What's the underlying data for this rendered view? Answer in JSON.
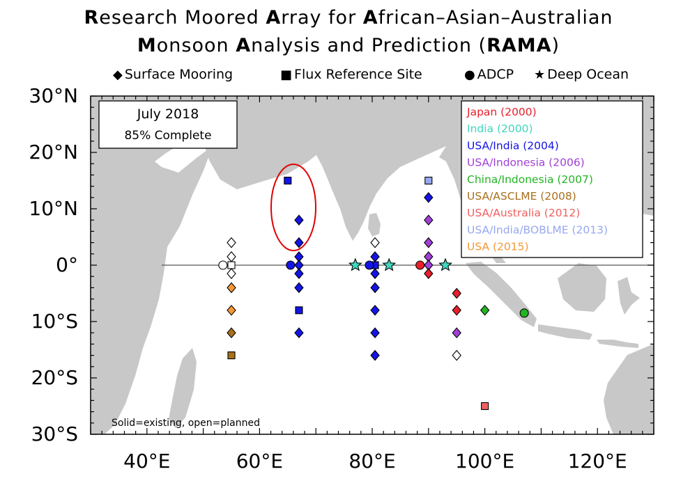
{
  "title": {
    "line1": [
      {
        "t": "R",
        "b": true
      },
      {
        "t": "esearch Moored ",
        "b": false
      },
      {
        "t": "A",
        "b": true
      },
      {
        "t": "rray for ",
        "b": false
      },
      {
        "t": "A",
        "b": true
      },
      {
        "t": "frican–Asian–Australian",
        "b": false
      }
    ],
    "line2": [
      {
        "t": "M",
        "b": true
      },
      {
        "t": "onsoon ",
        "b": false
      },
      {
        "t": "A",
        "b": true
      },
      {
        "t": "nalysis and Prediction (",
        "b": false
      },
      {
        "t": "RAMA",
        "b": true
      },
      {
        "t": ")",
        "b": false
      }
    ]
  },
  "symbol_key": [
    {
      "glyph": "◆",
      "label": "Surface Mooring"
    },
    {
      "glyph": "■",
      "label": "Flux Reference Site"
    },
    {
      "glyph": "●",
      "label": "ADCP"
    },
    {
      "glyph": "★",
      "label": "Deep Ocean"
    }
  ],
  "status_box": {
    "date": "July 2018",
    "complete": "85% Complete"
  },
  "footnote": "Solid=existing, open=planned",
  "lat_labels": [
    {
      "lat": 30,
      "text": "30°N"
    },
    {
      "lat": 20,
      "text": "20°N"
    },
    {
      "lat": 10,
      "text": "10°N"
    },
    {
      "lat": 0,
      "text": "0°"
    },
    {
      "lat": -10,
      "text": "10°S"
    },
    {
      "lat": -20,
      "text": "20°S"
    },
    {
      "lat": -30,
      "text": "30°S"
    }
  ],
  "lon_labels": [
    {
      "lon": 40,
      "text": "40°E"
    },
    {
      "lon": 60,
      "text": "60°E"
    },
    {
      "lon": 80,
      "text": "80°E"
    },
    {
      "lon": 100,
      "text": "100°E"
    },
    {
      "lon": 120,
      "text": "120°E"
    }
  ],
  "map_extent": {
    "lon": [
      30,
      130
    ],
    "lat": [
      -30,
      30
    ]
  },
  "colors": {
    "land": "#c8c8c8",
    "ocean": "#ffffff",
    "highlight": "#e00000"
  },
  "partners": [
    {
      "key": "japan",
      "label": "Japan (2000)",
      "color": "#e8202a"
    },
    {
      "key": "india",
      "label": "India (2000)",
      "color": "#3fd7be"
    },
    {
      "key": "usa_india",
      "label": "USA/India (2004)",
      "color": "#1414e6"
    },
    {
      "key": "usa_indonesia",
      "label": "USA/Indonesia (2006)",
      "color": "#a040d8"
    },
    {
      "key": "china_indonesia",
      "label": "China/Indonesia (2007)",
      "color": "#22b422"
    },
    {
      "key": "usa_asclme",
      "label": "USA/ASCLME (2008)",
      "color": "#a8701c"
    },
    {
      "key": "usa_australia",
      "label": "USA/Australia (2012)",
      "color": "#f06060"
    },
    {
      "key": "usa_india_bob",
      "label": "USA/India/BOBLME (2013)",
      "color": "#98a8f0"
    },
    {
      "key": "usa2015",
      "label": "USA (2015)",
      "color": "#f59838"
    }
  ],
  "moorings": [
    {
      "lon": 55,
      "lat": 4,
      "s": "d",
      "c": "open"
    },
    {
      "lon": 55,
      "lat": 1.5,
      "s": "d",
      "c": "open"
    },
    {
      "lon": 55,
      "lat": 0,
      "s": "s",
      "c": "open"
    },
    {
      "lon": 53.5,
      "lat": 0,
      "s": "o",
      "c": "open"
    },
    {
      "lon": 55,
      "lat": -1.5,
      "s": "d",
      "c": "open"
    },
    {
      "lon": 55,
      "lat": -4,
      "s": "d",
      "c": "usa2015"
    },
    {
      "lon": 55,
      "lat": -8,
      "s": "d",
      "c": "usa2015"
    },
    {
      "lon": 55,
      "lat": -12,
      "s": "d",
      "c": "usa_asclme"
    },
    {
      "lon": 55,
      "lat": -16,
      "s": "s",
      "c": "usa_asclme"
    },
    {
      "lon": 65,
      "lat": 15,
      "s": "s",
      "c": "usa_india"
    },
    {
      "lon": 67,
      "lat": 8,
      "s": "d",
      "c": "usa_india"
    },
    {
      "lon": 67,
      "lat": 4,
      "s": "d",
      "c": "usa_india"
    },
    {
      "lon": 67,
      "lat": 1.5,
      "s": "d",
      "c": "usa_india"
    },
    {
      "lon": 67,
      "lat": 0,
      "s": "d",
      "c": "usa_india"
    },
    {
      "lon": 65.5,
      "lat": 0,
      "s": "o",
      "c": "usa_india"
    },
    {
      "lon": 67,
      "lat": -1.5,
      "s": "d",
      "c": "usa_india"
    },
    {
      "lon": 67,
      "lat": -4,
      "s": "d",
      "c": "usa_india"
    },
    {
      "lon": 67,
      "lat": -8,
      "s": "s",
      "c": "usa_india"
    },
    {
      "lon": 67,
      "lat": -12,
      "s": "d",
      "c": "usa_india"
    },
    {
      "lon": 80.5,
      "lat": 4,
      "s": "d",
      "c": "open"
    },
    {
      "lon": 80.5,
      "lat": 1.5,
      "s": "d",
      "c": "usa_india"
    },
    {
      "lon": 80.5,
      "lat": 0,
      "s": "s",
      "c": "usa_india"
    },
    {
      "lon": 79.5,
      "lat": 0,
      "s": "o",
      "c": "usa_india"
    },
    {
      "lon": 80.5,
      "lat": -1.5,
      "s": "d",
      "c": "usa_india"
    },
    {
      "lon": 80.5,
      "lat": -4,
      "s": "d",
      "c": "usa_india"
    },
    {
      "lon": 80.5,
      "lat": -8,
      "s": "d",
      "c": "usa_india"
    },
    {
      "lon": 80.5,
      "lat": -12,
      "s": "d",
      "c": "usa_india"
    },
    {
      "lon": 80.5,
      "lat": -16,
      "s": "d",
      "c": "usa_india"
    },
    {
      "lon": 77,
      "lat": 0,
      "s": "t",
      "c": "india"
    },
    {
      "lon": 83,
      "lat": 0,
      "s": "t",
      "c": "india"
    },
    {
      "lon": 93,
      "lat": 0,
      "s": "t",
      "c": "india"
    },
    {
      "lon": 90,
      "lat": 15,
      "s": "s",
      "c": "usa_india_bob"
    },
    {
      "lon": 90,
      "lat": 12,
      "s": "d",
      "c": "usa_india"
    },
    {
      "lon": 90,
      "lat": 8,
      "s": "d",
      "c": "usa_indonesia"
    },
    {
      "lon": 90,
      "lat": 4,
      "s": "d",
      "c": "usa_indonesia"
    },
    {
      "lon": 90,
      "lat": 1.5,
      "s": "d",
      "c": "usa_indonesia"
    },
    {
      "lon": 90,
      "lat": 0,
      "s": "d",
      "c": "usa_indonesia"
    },
    {
      "lon": 88.5,
      "lat": 0,
      "s": "o",
      "c": "japan"
    },
    {
      "lon": 90,
      "lat": -1.5,
      "s": "d",
      "c": "japan"
    },
    {
      "lon": 95,
      "lat": -5,
      "s": "d",
      "c": "japan"
    },
    {
      "lon": 95,
      "lat": -8,
      "s": "d",
      "c": "japan"
    },
    {
      "lon": 95,
      "lat": -12,
      "s": "d",
      "c": "usa_indonesia"
    },
    {
      "lon": 95,
      "lat": -16,
      "s": "d",
      "c": "open"
    },
    {
      "lon": 100,
      "lat": -8,
      "s": "d",
      "c": "china_indonesia"
    },
    {
      "lon": 107,
      "lat": -8.5,
      "s": "o",
      "c": "china_indonesia"
    },
    {
      "lon": 100,
      "lat": -25,
      "s": "s",
      "c": "usa_australia"
    }
  ]
}
